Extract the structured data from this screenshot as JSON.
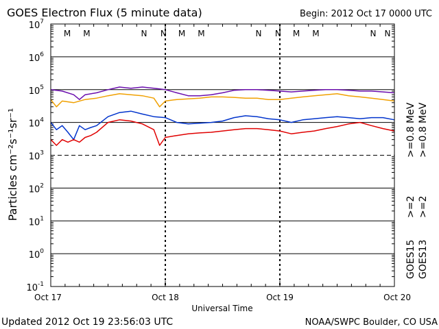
{
  "header": {
    "title": "GOES Electron Flux (5 minute data)",
    "begin": "Begin: 2012 Oct 17 0000 UTC"
  },
  "footer": {
    "updated": "Updated 2012 Oct 19 23:56:03 UTC",
    "credit": "NOAA/SWPC Boulder, CO USA"
  },
  "colors": {
    "goes15_08": "#6a0dad",
    "goes13_08": "#f0a000",
    "goes15_2": "#0033cc",
    "goes13_2": "#e00000",
    "m_marker": "#cc0000",
    "n_marker": "#0033cc"
  },
  "chart_data": {
    "type": "line",
    "title": "GOES Electron Flux (5 minute data)",
    "xlabel": "Universal Time",
    "ylabel": "Particles cm⁻²s⁻¹sr⁻¹",
    "yscale": "log",
    "ylim": [
      0.1,
      10000000
    ],
    "xlim": [
      "2012-10-17",
      "2012-10-20"
    ],
    "x_ticks": [
      "Oct 17",
      "Oct 18",
      "Oct 19",
      "Oct 20"
    ],
    "y_ticks": [
      {
        "v": 10000000,
        "b": "10",
        "e": "7"
      },
      {
        "v": 1000000,
        "b": "10",
        "e": "6"
      },
      {
        "v": 100000,
        "b": "10",
        "e": "5"
      },
      {
        "v": 10000,
        "b": "10",
        "e": "4"
      },
      {
        "v": 1000,
        "b": "10",
        "e": "3"
      },
      {
        "v": 100,
        "b": "10",
        "e": "2"
      },
      {
        "v": 10,
        "b": "10",
        "e": "1"
      },
      {
        "v": 1,
        "b": "10",
        "e": "0"
      },
      {
        "v": 0.1,
        "b": "10",
        "e": "-1"
      }
    ],
    "threshold": {
      "value": 1000
    },
    "markers": [
      {
        "day": 0.18,
        "label": "M",
        "kind": "m"
      },
      {
        "day": 0.35,
        "label": "M",
        "kind": "n"
      },
      {
        "day": 0.85,
        "label": "N",
        "kind": "m"
      },
      {
        "day": 1.02,
        "label": "N",
        "kind": "n"
      },
      {
        "day": 1.18,
        "label": "M",
        "kind": "m"
      },
      {
        "day": 1.35,
        "label": "M",
        "kind": "n"
      },
      {
        "day": 1.85,
        "label": "N",
        "kind": "m"
      },
      {
        "day": 2.02,
        "label": "N",
        "kind": "n"
      },
      {
        "day": 2.18,
        "label": "M",
        "kind": "m"
      },
      {
        "day": 2.35,
        "label": "M",
        "kind": "n"
      },
      {
        "day": 2.85,
        "label": "N",
        "kind": "m"
      },
      {
        "day": 3.02,
        "label": "N",
        "kind": "n"
      }
    ],
    "legend": [
      {
        "text": "GOES15",
        "color": "#000000"
      },
      {
        "text": "GOES13",
        "color": "#000000"
      },
      {
        "text": ">=2",
        "color": "#0033cc"
      },
      {
        "text": ">=2",
        "color": "#e00000"
      },
      {
        "text": ">=0.8",
        "color": "#6a0dad"
      },
      {
        "text": ">=0.8",
        "color": "#f0a000"
      },
      {
        "text": "MeV",
        "color": "#000000"
      },
      {
        "text": "MeV",
        "color": "#000000"
      }
    ],
    "series": [
      {
        "id": "goes15_08",
        "x": [
          0,
          0.1,
          0.2,
          0.25,
          0.3,
          0.4,
          0.5,
          0.6,
          0.7,
          0.8,
          0.9,
          1.0,
          1.1,
          1.2,
          1.3,
          1.4,
          1.5,
          1.6,
          1.7,
          1.8,
          1.9,
          2.0,
          2.1,
          2.2,
          2.3,
          2.4,
          2.5,
          2.6,
          2.7,
          2.8,
          2.9,
          3.0
        ],
        "y": [
          100000,
          90000,
          70000,
          50000,
          70000,
          80000,
          100000,
          120000,
          110000,
          120000,
          110000,
          100000,
          80000,
          65000,
          65000,
          70000,
          80000,
          95000,
          100000,
          100000,
          95000,
          90000,
          85000,
          90000,
          95000,
          100000,
          100000,
          95000,
          90000,
          90000,
          85000,
          80000
        ]
      },
      {
        "id": "goes13_08",
        "x": [
          0,
          0.05,
          0.1,
          0.2,
          0.3,
          0.4,
          0.5,
          0.6,
          0.7,
          0.8,
          0.9,
          0.95,
          1.0,
          1.1,
          1.2,
          1.3,
          1.4,
          1.5,
          1.6,
          1.7,
          1.8,
          1.9,
          2.0,
          2.1,
          2.2,
          2.3,
          2.4,
          2.5,
          2.6,
          2.7,
          2.8,
          2.9,
          3.0
        ],
        "y": [
          50000,
          30000,
          45000,
          40000,
          50000,
          55000,
          65000,
          75000,
          70000,
          65000,
          55000,
          30000,
          45000,
          50000,
          52000,
          55000,
          60000,
          60000,
          58000,
          55000,
          55000,
          50000,
          50000,
          55000,
          60000,
          65000,
          70000,
          75000,
          65000,
          60000,
          55000,
          50000,
          45000
        ]
      },
      {
        "id": "goes15_2",
        "x": [
          0,
          0.05,
          0.1,
          0.15,
          0.2,
          0.25,
          0.3,
          0.35,
          0.4,
          0.5,
          0.6,
          0.7,
          0.8,
          0.9,
          1.0,
          1.1,
          1.2,
          1.3,
          1.4,
          1.5,
          1.6,
          1.7,
          1.8,
          1.9,
          2.0,
          2.1,
          2.2,
          2.3,
          2.4,
          2.5,
          2.6,
          2.7,
          2.8,
          2.9,
          3.0
        ],
        "y": [
          10000,
          6000,
          8000,
          5000,
          3000,
          8000,
          6000,
          7000,
          8000,
          15000,
          20000,
          22000,
          18000,
          15000,
          14000,
          10000,
          9000,
          9500,
          10000,
          11000,
          14000,
          16000,
          15000,
          13000,
          12000,
          10000,
          12000,
          13000,
          14000,
          15000,
          14000,
          13000,
          14000,
          14000,
          12000
        ]
      },
      {
        "id": "goes13_2",
        "x": [
          0,
          0.05,
          0.1,
          0.15,
          0.2,
          0.25,
          0.3,
          0.35,
          0.4,
          0.5,
          0.6,
          0.7,
          0.8,
          0.9,
          0.95,
          1.0,
          1.1,
          1.2,
          1.3,
          1.4,
          1.5,
          1.6,
          1.7,
          1.8,
          1.9,
          2.0,
          2.1,
          2.2,
          2.3,
          2.4,
          2.5,
          2.6,
          2.7,
          2.8,
          2.9,
          3.0
        ],
        "y": [
          3000,
          2000,
          3000,
          2500,
          3000,
          2500,
          3500,
          4000,
          5000,
          10000,
          12000,
          11000,
          9000,
          6000,
          2000,
          3500,
          4000,
          4500,
          4800,
          5000,
          5500,
          6000,
          6500,
          6500,
          6000,
          5500,
          4500,
          5000,
          5500,
          6500,
          7500,
          9000,
          10000,
          8000,
          6500,
          5500
        ]
      }
    ]
  }
}
